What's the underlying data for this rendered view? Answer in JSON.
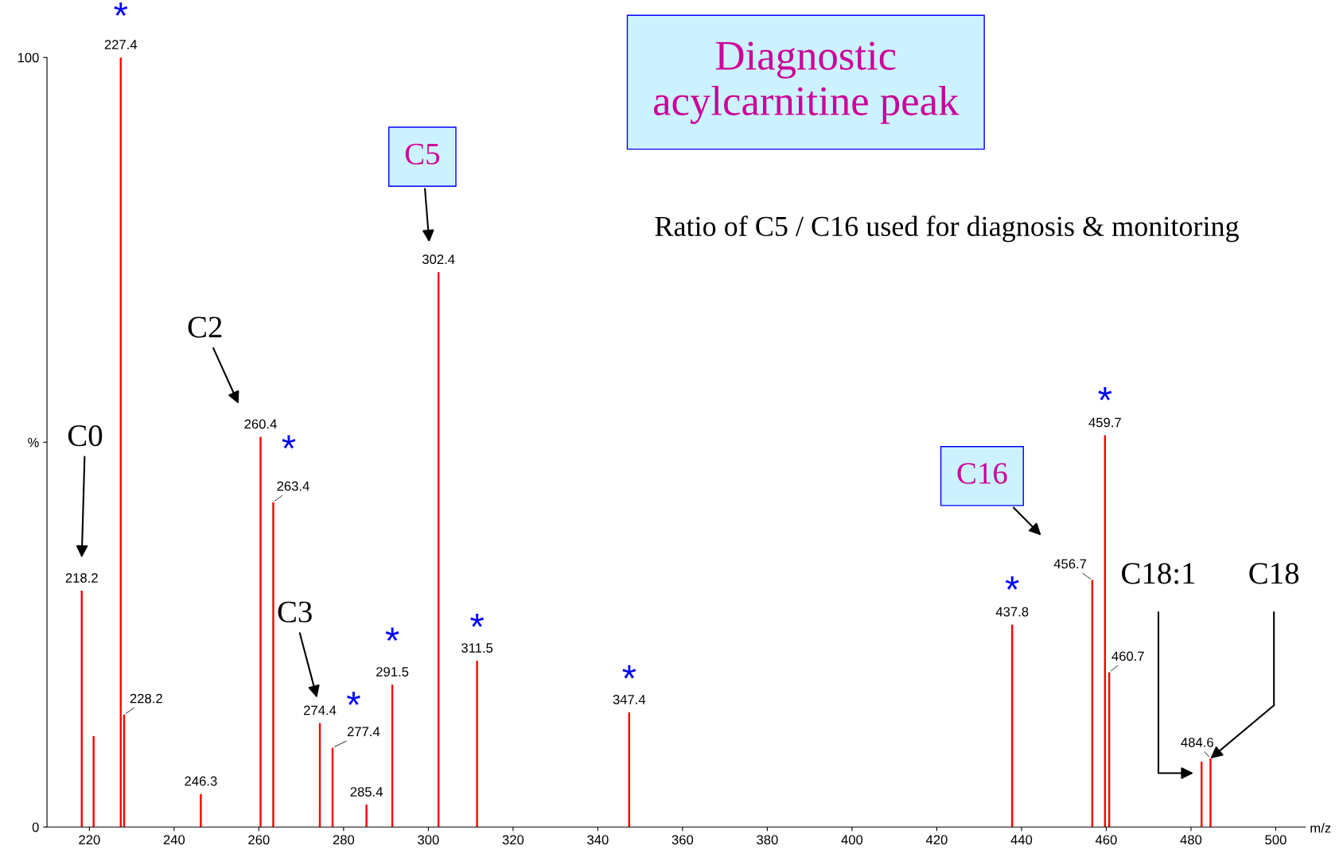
{
  "chart_data": {
    "type": "bar",
    "title": "Diagnostic\nacylcarnitine peak",
    "subtitle": "Ratio of C5 / C16 used for diagnosis & monitoring",
    "xlabel": "m/z",
    "color": "#ff0000",
    "x": [
      218.2,
      221.0,
      227.4,
      228.2,
      246.3,
      260.4,
      263.4,
      274.4,
      277.4,
      285.4,
      291.5,
      302.4,
      311.5,
      347.4,
      437.8,
      456.7,
      459.7,
      460.7,
      482.5,
      484.6
    ],
    "values": [
      30.7,
      11.8,
      100,
      14.6,
      4.3,
      50.7,
      42.2,
      13.5,
      10.3,
      2.9,
      18.5,
      72.1,
      21.6,
      14.9,
      26.3,
      32.1,
      50.9,
      20.1,
      8.5,
      8.9
    ],
    "xlim": [
      210,
      507
    ],
    "ylim": [
      0,
      100
    ],
    "xticks": [
      220,
      240,
      260,
      280,
      300,
      320,
      340,
      360,
      380,
      400,
      420,
      440,
      460,
      480,
      500
    ],
    "yticks": [
      0,
      {
        "value": 50,
        "label": "%"
      },
      100
    ],
    "annotations": [
      "C0",
      "C2",
      "C3",
      "C5",
      "C16",
      "C18:1",
      {
        "text": "C18",
        "x": 484.6,
        "y": 8.9
      },
      {
        "text": "*",
        "x": 227.4,
        "y": 100
      },
      {
        "text": "*",
        "x": 263.4,
        "y": 42.2
      },
      {
        "text": "*",
        "x": 277.4,
        "y": 10.3
      },
      {
        "text": "*",
        "x": 291.5,
        "y": 18.5
      },
      {
        "text": "*",
        "x": 311.5,
        "y": 21.6
      },
      {
        "text": "*",
        "x": 347.4,
        "y": 14.9
      },
      {
        "text": "*",
        "x": 437.8,
        "y": 26.3
      },
      {
        "text": "*",
        "x": 459.7,
        "y": 50.9
      },
      {
        "text": "218.2",
        "x": 218.2,
        "y": 30.7
      },
      {
        "text": "227.4",
        "x": 227.4,
        "y": 100
      },
      {
        "text": "228.2",
        "x": 228.2,
        "y": 14.6
      },
      {
        "text": "246.3",
        "x": 246.3,
        "y": 4.3
      },
      {
        "text": "260.4",
        "x": 260.4,
        "y": 50.7
      },
      {
        "text": "263.4",
        "x": 263.4,
        "y": 42.2
      },
      {
        "text": "274.4",
        "x": 274.4,
        "y": 13.5
      },
      {
        "text": "277.4",
        "x": 277.4,
        "y": 10.3
      },
      {
        "text": "285.4",
        "x": 285.4,
        "y": 2.9
      },
      {
        "text": "291.5",
        "x": 291.5,
        "y": 18.5
      },
      {
        "text": "302.4",
        "x": 302.4,
        "y": 72.1
      },
      {
        "text": "311.5",
        "x": 311.5,
        "y": 21.6
      },
      {
        "text": "347.4",
        "x": 347.4,
        "y": 14.9
      },
      {
        "text": "437.8",
        "x": 437.8,
        "y": 26.3
      },
      {
        "text": "456.7",
        "x": 456.7,
        "y": 32.1
      },
      {
        "text": "459.7",
        "x": 459.7,
        "y": 50.9
      },
      {
        "text": "460.7",
        "x": 460.7,
        "y": 20.1
      },
      {
        "text": "484.6",
        "x": 484.6,
        "y": 8.9
      }
    ]
  }
}
